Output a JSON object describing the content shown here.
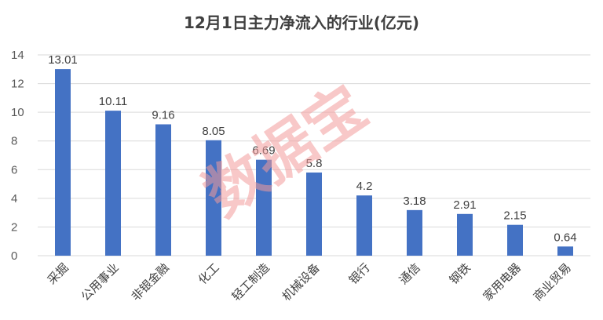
{
  "chart_data": {
    "type": "bar",
    "title": "12月1日主力净流入的行业(亿元)",
    "categories": [
      "采掘",
      "公用事业",
      "非银金融",
      "化工",
      "轻工制造",
      "机械设备",
      "银行",
      "通信",
      "钢铁",
      "家用电器",
      "商业贸易"
    ],
    "values": [
      13.01,
      10.11,
      9.16,
      8.05,
      6.69,
      5.8,
      4.2,
      3.18,
      2.91,
      2.15,
      0.64
    ],
    "data_labels": [
      "13.01",
      "10.11",
      "9.16",
      "8.05",
      "6.69",
      "5.8",
      "4.2",
      "3.18",
      "2.91",
      "2.15",
      "0.64"
    ],
    "yticks": [
      0,
      2,
      4,
      6,
      8,
      10,
      12,
      14
    ],
    "ylim": [
      0,
      14
    ],
    "grid": true,
    "legend": "none",
    "bar_color": "#4472c4",
    "grid_color": "#d9d9d9"
  },
  "watermark": "数据宝"
}
